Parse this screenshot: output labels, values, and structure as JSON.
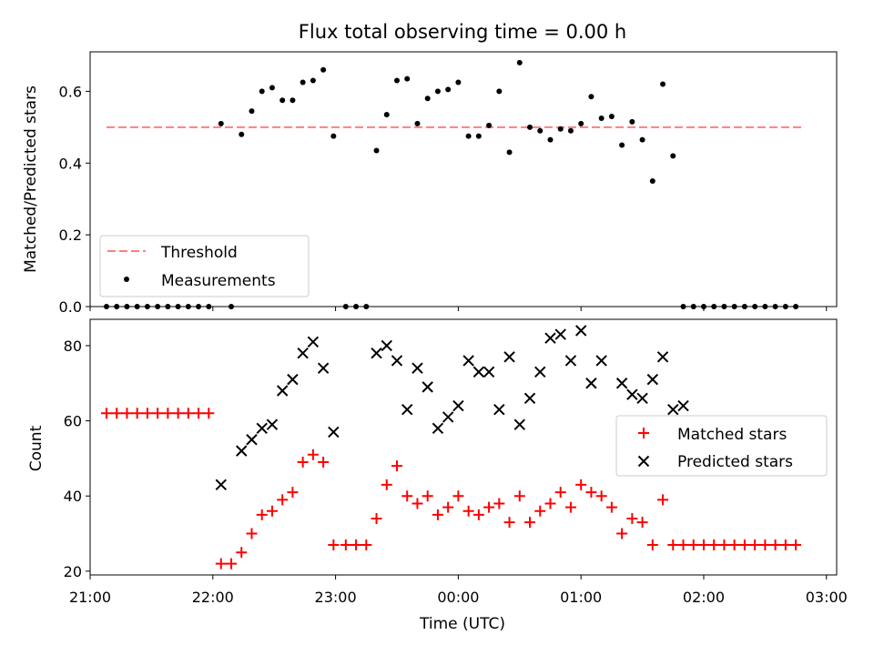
{
  "chart_data": [
    {
      "type": "scatter",
      "title": "Flux total observing time = 0.00 h",
      "ylabel": "Matched/Predicted stars",
      "xlabel": "",
      "ylim": [
        0,
        0.71
      ],
      "yticks": [
        "0.0",
        "0.2",
        "0.4",
        "0.6"
      ],
      "grid": false,
      "legend": "lower-left",
      "threshold": {
        "name": "Threshold",
        "value": 0.5,
        "x_range": [
          "21:08",
          "02:48"
        ],
        "color": "#ff7f7f"
      },
      "series": [
        {
          "name": "Measurements",
          "color": "#000000",
          "x": [
            "21:08",
            "21:13",
            "21:18",
            "21:23",
            "21:28",
            "21:33",
            "21:38",
            "21:43",
            "21:48",
            "21:53",
            "21:58",
            "22:04",
            "22:09",
            "22:14",
            "22:19",
            "22:24",
            "22:29",
            "22:34",
            "22:39",
            "22:44",
            "22:49",
            "22:54",
            "22:59",
            "23:05",
            "23:10",
            "23:15",
            "23:20",
            "23:25",
            "23:30",
            "23:35",
            "23:40",
            "23:45",
            "23:50",
            "23:55",
            "00:00",
            "00:05",
            "00:10",
            "00:15",
            "00:20",
            "00:25",
            "00:30",
            "00:35",
            "00:40",
            "00:45",
            "00:50",
            "00:55",
            "01:00",
            "01:05",
            "01:10",
            "01:15",
            "01:20",
            "01:25",
            "01:30",
            "01:35",
            "01:40",
            "01:45",
            "01:50",
            "01:55",
            "02:00",
            "02:05",
            "02:10",
            "02:15",
            "02:20",
            "02:25",
            "02:30",
            "02:35",
            "02:40",
            "02:45"
          ],
          "values": [
            0,
            0,
            0,
            0,
            0,
            0,
            0,
            0,
            0,
            0,
            0,
            0.51,
            0,
            0.48,
            0.545,
            0.6,
            0.61,
            0.575,
            0.575,
            0.625,
            0.63,
            0.66,
            0.475,
            0,
            0,
            0,
            0.435,
            0.535,
            0.63,
            0.635,
            0.51,
            0.58,
            0.6,
            0.605,
            0.625,
            0.475,
            0.475,
            0.505,
            0.6,
            0.43,
            0.68,
            0.5,
            0.49,
            0.465,
            0.495,
            0.49,
            0.51,
            0.585,
            0.525,
            0.53,
            0.45,
            0.515,
            0.465,
            0.35,
            0.62,
            0.42,
            0,
            0,
            0,
            0,
            0,
            0,
            0,
            0,
            0,
            0,
            0,
            0
          ]
        }
      ]
    },
    {
      "type": "scatter",
      "title": "",
      "ylabel": "Count",
      "xlabel": "Time (UTC)",
      "ylim": [
        19,
        87
      ],
      "yticks": [
        "20",
        "40",
        "60",
        "80"
      ],
      "xticks": [
        "21:00",
        "22:00",
        "23:00",
        "00:00",
        "01:00",
        "02:00",
        "03:00"
      ],
      "grid": false,
      "legend": "center-right",
      "series": [
        {
          "name": "Matched stars",
          "color": "#ff0000",
          "x": [
            "21:08",
            "21:13",
            "21:18",
            "21:23",
            "21:28",
            "21:33",
            "21:38",
            "21:43",
            "21:48",
            "21:53",
            "21:58",
            "22:04",
            "22:09",
            "22:14",
            "22:19",
            "22:24",
            "22:29",
            "22:34",
            "22:39",
            "22:44",
            "22:49",
            "22:54",
            "22:59",
            "23:05",
            "23:10",
            "23:15",
            "23:20",
            "23:25",
            "23:30",
            "23:35",
            "23:40",
            "23:45",
            "23:50",
            "23:55",
            "00:00",
            "00:05",
            "00:10",
            "00:15",
            "00:20",
            "00:25",
            "00:30",
            "00:35",
            "00:40",
            "00:45",
            "00:50",
            "00:55",
            "01:00",
            "01:05",
            "01:10",
            "01:15",
            "01:20",
            "01:25",
            "01:30",
            "01:35",
            "01:40",
            "01:45",
            "01:50",
            "01:55",
            "02:00",
            "02:05",
            "02:10",
            "02:15",
            "02:20",
            "02:25",
            "02:30",
            "02:35",
            "02:40",
            "02:45"
          ],
          "values": [
            62,
            62,
            62,
            62,
            62,
            62,
            62,
            62,
            62,
            62,
            62,
            22,
            22,
            25,
            30,
            35,
            36,
            39,
            41,
            49,
            51,
            49,
            27,
            27,
            27,
            27,
            34,
            43,
            48,
            40,
            38,
            40,
            35,
            37,
            40,
            36,
            35,
            37,
            38,
            33,
            40,
            33,
            36,
            38,
            41,
            37,
            43,
            41,
            40,
            37,
            30,
            34,
            33,
            27,
            39,
            27,
            27,
            27,
            27,
            27,
            27,
            27,
            27,
            27,
            27,
            27,
            27,
            27
          ]
        },
        {
          "name": "Predicted stars",
          "color": "#000000",
          "x": [
            "22:04",
            "22:14",
            "22:19",
            "22:24",
            "22:29",
            "22:34",
            "22:39",
            "22:44",
            "22:49",
            "22:54",
            "22:59",
            "23:20",
            "23:25",
            "23:30",
            "23:35",
            "23:40",
            "23:45",
            "23:50",
            "23:55",
            "00:00",
            "00:05",
            "00:10",
            "00:15",
            "00:20",
            "00:25",
            "00:30",
            "00:35",
            "00:40",
            "00:45",
            "00:50",
            "00:55",
            "01:00",
            "01:05",
            "01:10",
            "01:20",
            "01:25",
            "01:30",
            "01:35",
            "01:40",
            "01:45",
            "01:50"
          ],
          "values": [
            43,
            52,
            55,
            58,
            59,
            68,
            71,
            78,
            81,
            74,
            57,
            78,
            80,
            76,
            63,
            74,
            69,
            58,
            61,
            64,
            76,
            73,
            73,
            63,
            77,
            59,
            66,
            73,
            82,
            83,
            76,
            84,
            70,
            76,
            70,
            67,
            66,
            71,
            77,
            63,
            64
          ]
        }
      ]
    }
  ]
}
